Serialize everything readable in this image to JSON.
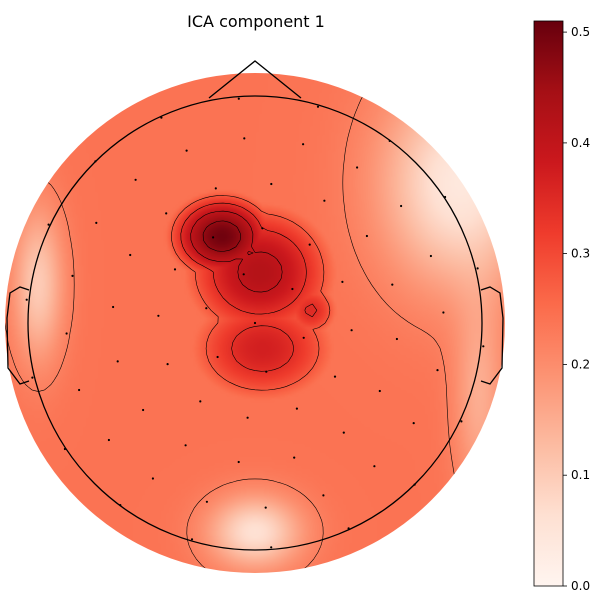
{
  "chart_data": {
    "type": "heatmap",
    "title": "ICA component 1",
    "colormap": "Reds",
    "value_range": [
      0.0,
      0.51
    ],
    "colorbar_ticks": [
      0.0,
      0.1,
      0.2,
      0.3,
      0.4,
      0.5
    ],
    "colorbar_tick_labels": [
      "0.0",
      "0.1",
      "0.2",
      "0.3",
      "0.4",
      "0.5"
    ],
    "sensor_markers": "shown",
    "contour_lines": "shown",
    "peak_region": "left-frontal",
    "peak_value": 0.51,
    "minimum_region": "posterior-midline",
    "minimum_value": 0.18
  }
}
